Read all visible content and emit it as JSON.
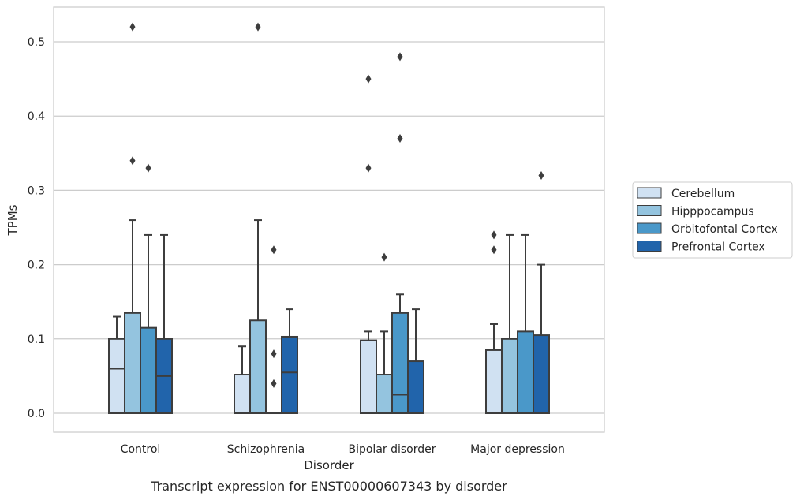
{
  "chart_data": {
    "type": "boxplot",
    "caption": "Transcript expression for ENST00000607343 by disorder",
    "xlabel": "Disorder",
    "ylabel": "TPMs",
    "ylim": [
      -0.025,
      0.547
    ],
    "yticks": [
      0.0,
      0.1,
      0.2,
      0.3,
      0.4,
      0.5
    ],
    "ytick_labels": [
      "0.0",
      "0.1",
      "0.2",
      "0.3",
      "0.4",
      "0.5"
    ],
    "grid": true,
    "legend_position": "right",
    "categories": [
      "Control",
      "Schizophrenia",
      "Bipolar disorder",
      "Major depression"
    ],
    "series": [
      {
        "name": "Cerebellum",
        "color": "#d0e1f2",
        "boxes": [
          {
            "q1": 0.0,
            "median": 0.06,
            "q3": 0.1,
            "whisker_low": 0.0,
            "whisker_high": 0.13,
            "outliers": []
          },
          {
            "q1": 0.0,
            "median": 0.0,
            "q3": 0.052,
            "whisker_low": 0.0,
            "whisker_high": 0.09,
            "outliers": []
          },
          {
            "q1": 0.0,
            "median": 0.0,
            "q3": 0.098,
            "whisker_low": 0.0,
            "whisker_high": 0.11,
            "outliers": [
              0.45,
              0.33
            ]
          },
          {
            "q1": 0.0,
            "median": 0.0,
            "q3": 0.085,
            "whisker_low": 0.0,
            "whisker_high": 0.12,
            "outliers": [
              0.24,
              0.22
            ]
          }
        ]
      },
      {
        "name": "Hipppocampus",
        "color": "#94c4df",
        "boxes": [
          {
            "q1": 0.0,
            "median": 0.0,
            "q3": 0.135,
            "whisker_low": 0.0,
            "whisker_high": 0.26,
            "outliers": [
              0.52,
              0.34
            ]
          },
          {
            "q1": 0.0,
            "median": 0.0,
            "q3": 0.125,
            "whisker_low": 0.0,
            "whisker_high": 0.26,
            "outliers": [
              0.52
            ]
          },
          {
            "q1": 0.0,
            "median": 0.0,
            "q3": 0.052,
            "whisker_low": 0.0,
            "whisker_high": 0.11,
            "outliers": [
              0.21
            ]
          },
          {
            "q1": 0.0,
            "median": 0.0,
            "q3": 0.1,
            "whisker_low": 0.0,
            "whisker_high": 0.24,
            "outliers": []
          }
        ]
      },
      {
        "name": "Orbitofontal Cortex",
        "color": "#4a98c9",
        "boxes": [
          {
            "q1": 0.0,
            "median": 0.0,
            "q3": 0.115,
            "whisker_low": 0.0,
            "whisker_high": 0.24,
            "outliers": [
              0.33
            ]
          },
          {
            "q1": 0.0,
            "median": 0.0,
            "q3": 0.0,
            "whisker_low": 0.0,
            "whisker_high": 0.0,
            "outliers": [
              0.22,
              0.08,
              0.04
            ]
          },
          {
            "q1": 0.0,
            "median": 0.025,
            "q3": 0.135,
            "whisker_low": 0.0,
            "whisker_high": 0.16,
            "outliers": [
              0.48,
              0.37
            ]
          },
          {
            "q1": 0.0,
            "median": 0.0,
            "q3": 0.11,
            "whisker_low": 0.0,
            "whisker_high": 0.24,
            "outliers": []
          }
        ]
      },
      {
        "name": "Prefrontal Cortex",
        "color": "#2164ab",
        "boxes": [
          {
            "q1": 0.0,
            "median": 0.05,
            "q3": 0.1,
            "whisker_low": 0.0,
            "whisker_high": 0.24,
            "outliers": []
          },
          {
            "q1": 0.0,
            "median": 0.055,
            "q3": 0.103,
            "whisker_low": 0.0,
            "whisker_high": 0.14,
            "outliers": []
          },
          {
            "q1": 0.0,
            "median": 0.0,
            "q3": 0.07,
            "whisker_low": 0.0,
            "whisker_high": 0.14,
            "outliers": []
          },
          {
            "q1": 0.0,
            "median": 0.0,
            "q3": 0.105,
            "whisker_low": 0.0,
            "whisker_high": 0.2,
            "outliers": [
              0.32
            ]
          }
        ]
      }
    ]
  }
}
